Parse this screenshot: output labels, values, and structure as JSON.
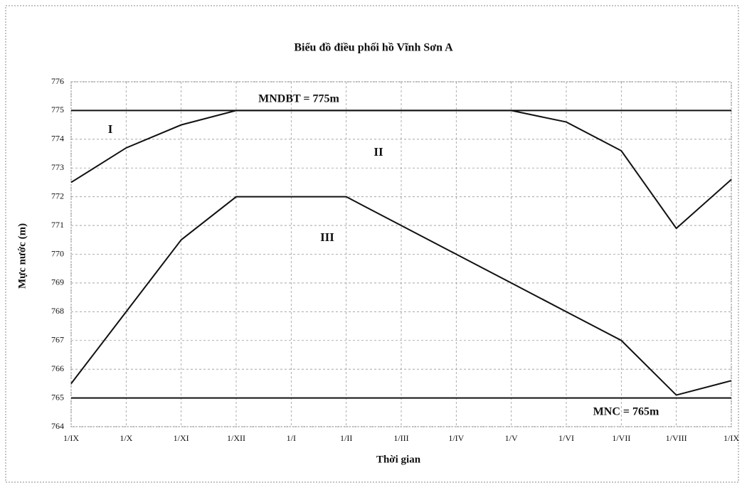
{
  "chart_data": {
    "type": "line",
    "title": "Biểu đồ điều phối hồ Vĩnh Sơn A",
    "x_label": "Thời gian",
    "y_label": "Mực nước (m)",
    "categories": [
      "1/IX",
      "1/X",
      "1/XI",
      "1/XII",
      "1/I",
      "1/II",
      "1/III",
      "1/IV",
      "1/V",
      "1/VI",
      "1/VII",
      "1/VIII",
      "1/IX"
    ],
    "series": [
      {
        "color": "#111111",
        "values": [
          775,
          775,
          775,
          775,
          775,
          775,
          775,
          775,
          775,
          775,
          775,
          775,
          775
        ]
      },
      {
        "color": "#111111",
        "values": [
          772.5,
          773.7,
          774.5,
          775,
          775,
          775,
          775,
          775,
          775,
          774.6,
          773.6,
          770.9,
          772.6
        ]
      },
      {
        "color": "#111111",
        "values": [
          765.5,
          768,
          770.5,
          772,
          772,
          772,
          771,
          770,
          769,
          768,
          767,
          765.1,
          765.6
        ]
      },
      {
        "color": "#111111",
        "values": [
          765,
          765,
          765,
          765,
          765,
          765,
          765,
          765,
          765,
          765,
          765,
          765,
          765
        ]
      }
    ],
    "annotations": [
      "MNDBT = 775m",
      "I",
      "II",
      "III",
      "MNC = 765m"
    ],
    "ylim": [
      764,
      776
    ],
    "yticks": [
      764,
      765,
      766,
      767,
      768,
      769,
      770,
      771,
      772,
      773,
      774,
      775,
      776
    ],
    "grid": true
  }
}
